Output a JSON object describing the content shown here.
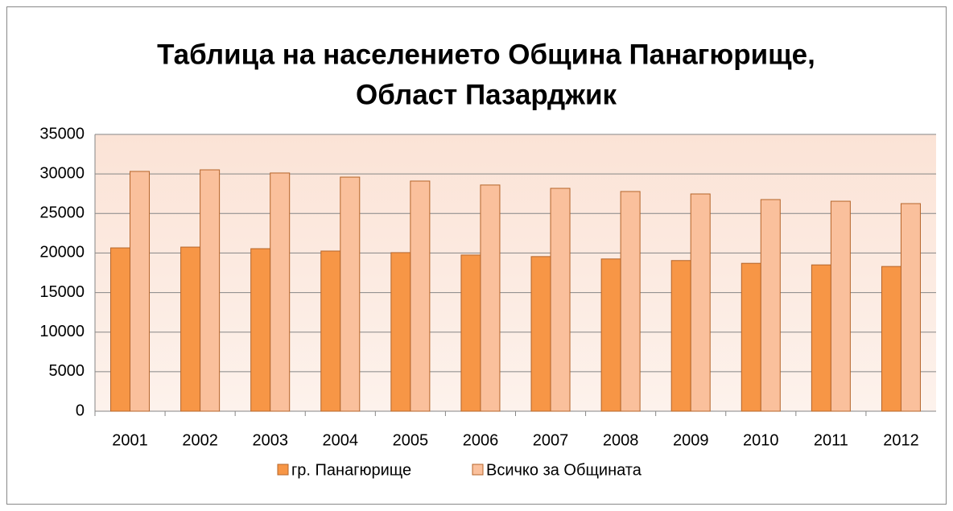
{
  "chart_data": {
    "type": "bar",
    "title": [
      "Таблица на населението Община Панагюрище,",
      "Област Пазарджик"
    ],
    "categories": [
      "2001",
      "2002",
      "2003",
      "2004",
      "2005",
      "2006",
      "2007",
      "2008",
      "2009",
      "2010",
      "2011",
      "2012"
    ],
    "series": [
      {
        "name": "гр. Панагюрище",
        "color": "#f79646",
        "values": [
          20650,
          20750,
          20550,
          20250,
          20050,
          19750,
          19550,
          19250,
          19050,
          18700,
          18500,
          18300
        ]
      },
      {
        "name": "Всичко за Общината",
        "color": "#fac09c",
        "values": [
          30320,
          30520,
          30120,
          29600,
          29100,
          28600,
          28180,
          27780,
          27470,
          26760,
          26550,
          26250
        ]
      }
    ],
    "ylim": [
      0,
      35000
    ],
    "yticks": [
      0,
      5000,
      10000,
      15000,
      20000,
      25000,
      30000,
      35000
    ],
    "grid": true,
    "legend": "bottom"
  }
}
